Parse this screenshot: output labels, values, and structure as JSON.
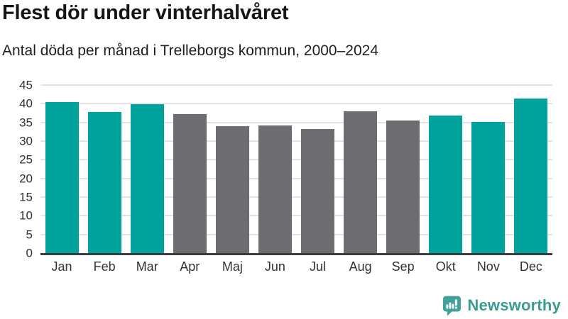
{
  "header": {
    "title": "Flest dör under vinterhalvåret",
    "subtitle": "Antal döda per månad i Trelleborgs kommun, 2000–2024"
  },
  "chart_data": {
    "type": "bar",
    "title": "Flest dör under vinterhalvåret",
    "subtitle": "Antal döda per månad i Trelleborgs kommun, 2000–2024",
    "categories": [
      "Jan",
      "Feb",
      "Mar",
      "Apr",
      "Maj",
      "Jun",
      "Jul",
      "Aug",
      "Sep",
      "Okt",
      "Nov",
      "Dec"
    ],
    "values": [
      40.4,
      37.8,
      39.9,
      37.3,
      33.9,
      34.2,
      33.3,
      37.9,
      35.6,
      36.8,
      35.2,
      41.4
    ],
    "colors": [
      "#00a39c",
      "#00a39c",
      "#00a39c",
      "#6d6d71",
      "#6d6d71",
      "#6d6d71",
      "#6d6d71",
      "#6d6d71",
      "#6d6d71",
      "#00a39c",
      "#00a39c",
      "#00a39c"
    ],
    "palette": {
      "winter_months": "#00a39c",
      "summer_months": "#6d6d71"
    },
    "xlabel": "",
    "ylabel": "",
    "ylim": [
      0,
      45
    ],
    "y_ticks": [
      0,
      5,
      10,
      15,
      20,
      25,
      30,
      35,
      40,
      45
    ],
    "grid": "horizontal",
    "gridline_color": "#e3e3e3",
    "axis_line_color": "#3d3d3d",
    "legend": "none"
  },
  "footer": {
    "brand": "Newsworthy",
    "brand_color": "#3a9b95",
    "logo_icon": "newsworthy-speech-bubble-bar-chart-icon"
  }
}
